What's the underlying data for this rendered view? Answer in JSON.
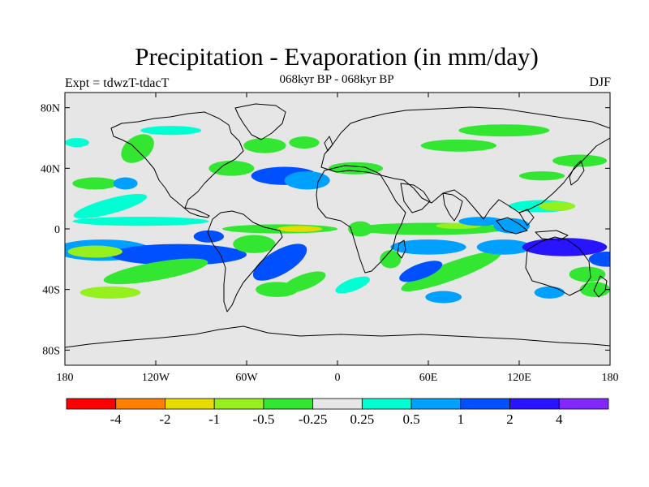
{
  "title": "Precipitation - Evaporation (in mm/day)",
  "subtitle": "068kyr BP - 068kyr BP",
  "left_label": "Expt = tdwzT-tdacT",
  "right_label": "DJF",
  "colors": {
    "background": "#e6e6e6",
    "coast": "#000000",
    "levels": [
      "#ff0000",
      "#ff8000",
      "#e6dc00",
      "#96f01e",
      "#32e632",
      "#e6e6e6",
      "#00ffd2",
      "#00a0ff",
      "#0050ff",
      "#2814ff",
      "#8228ff"
    ]
  },
  "map": {
    "lon_ticks": [
      "180",
      "120W",
      "60W",
      "0",
      "60E",
      "120E",
      "180"
    ],
    "lat_ticks": [
      "80N",
      "40N",
      "0",
      "40S",
      "80S"
    ]
  },
  "colorbar": {
    "labels": [
      "-4",
      "-2",
      "-1",
      "-0.5",
      "-0.25",
      "0.25",
      "0.5",
      "1",
      "2",
      "4"
    ]
  },
  "chart_data": {
    "type": "contour-map",
    "projection": "cylindrical-equidistant",
    "season": "DJF",
    "lon_range": [
      -180,
      180
    ],
    "lat_range": [
      -90,
      90
    ],
    "levels": [
      -4,
      -2,
      -1,
      -0.5,
      -0.25,
      0.25,
      0.5,
      1,
      2,
      4
    ],
    "regions": [
      {
        "lon": -155,
        "lat": -14,
        "rx": 32,
        "ry": 7,
        "level": 7,
        "angle": 0
      },
      {
        "lon": -105,
        "lat": -17,
        "rx": 45,
        "ry": 7,
        "level": 8,
        "angle": 0
      },
      {
        "lon": -160,
        "lat": -15,
        "rx": 18,
        "ry": 4,
        "level": 3,
        "angle": 0
      },
      {
        "lon": -130,
        "lat": 5,
        "rx": 45,
        "ry": 3,
        "level": 6,
        "angle": 0
      },
      {
        "lon": -85,
        "lat": -5,
        "rx": 10,
        "ry": 4,
        "level": 8,
        "angle": 0
      },
      {
        "lon": -150,
        "lat": 15,
        "rx": 25,
        "ry": 5,
        "level": 6,
        "angle": -15
      },
      {
        "lon": -150,
        "lat": -42,
        "rx": 20,
        "ry": 4,
        "level": 3,
        "angle": 0
      },
      {
        "lon": -120,
        "lat": -28,
        "rx": 35,
        "ry": 6,
        "level": 4,
        "angle": -10
      },
      {
        "lon": -160,
        "lat": 30,
        "rx": 15,
        "ry": 4,
        "level": 4,
        "angle": 0
      },
      {
        "lon": -132,
        "lat": 53,
        "rx": 12,
        "ry": 8,
        "level": 4,
        "angle": -35
      },
      {
        "lon": -172,
        "lat": 57,
        "rx": 8,
        "ry": 3,
        "level": 6,
        "angle": 0
      },
      {
        "lon": -70,
        "lat": 40,
        "rx": 15,
        "ry": 5,
        "level": 4,
        "angle": 0
      },
      {
        "lon": -35,
        "lat": 35,
        "rx": 22,
        "ry": 6,
        "level": 8,
        "angle": 0
      },
      {
        "lon": -20,
        "lat": 32,
        "rx": 15,
        "ry": 6,
        "level": 7,
        "angle": 0
      },
      {
        "lon": -48,
        "lat": 55,
        "rx": 14,
        "ry": 5,
        "level": 4,
        "angle": 0
      },
      {
        "lon": -22,
        "lat": 57,
        "rx": 10,
        "ry": 4,
        "level": 4,
        "angle": 0
      },
      {
        "lon": 12,
        "lat": 40,
        "rx": 18,
        "ry": 4,
        "level": 4,
        "angle": 0
      },
      {
        "lon": -38,
        "lat": 0,
        "rx": 38,
        "ry": 3,
        "level": 4,
        "angle": 0
      },
      {
        "lon": -25,
        "lat": 0,
        "rx": 15,
        "ry": 2,
        "level": 2,
        "angle": 0
      },
      {
        "lon": -55,
        "lat": -10,
        "rx": 14,
        "ry": 6,
        "level": 4,
        "angle": 0
      },
      {
        "lon": -38,
        "lat": -22,
        "rx": 20,
        "ry": 8,
        "level": 8,
        "angle": -30
      },
      {
        "lon": -22,
        "lat": -35,
        "rx": 15,
        "ry": 5,
        "level": 4,
        "angle": -20
      },
      {
        "lon": -40,
        "lat": -40,
        "rx": 14,
        "ry": 5,
        "level": 4,
        "angle": 0
      },
      {
        "lon": 10,
        "lat": -37,
        "rx": 12,
        "ry": 4,
        "level": 6,
        "angle": -20
      },
      {
        "lon": 15,
        "lat": 0,
        "rx": 8,
        "ry": 5,
        "level": 4,
        "angle": 0
      },
      {
        "lon": 35,
        "lat": -20,
        "rx": 7,
        "ry": 6,
        "level": 4,
        "angle": 0
      },
      {
        "lon": 60,
        "lat": 0,
        "rx": 50,
        "ry": 4,
        "level": 4,
        "angle": 0
      },
      {
        "lon": 80,
        "lat": 2,
        "rx": 15,
        "ry": 2,
        "level": 3,
        "angle": 0
      },
      {
        "lon": 60,
        "lat": -12,
        "rx": 25,
        "ry": 5,
        "level": 7,
        "angle": 0
      },
      {
        "lon": 75,
        "lat": -28,
        "rx": 35,
        "ry": 6,
        "level": 4,
        "angle": -20
      },
      {
        "lon": 55,
        "lat": -28,
        "rx": 15,
        "ry": 5,
        "level": 8,
        "angle": -20
      },
      {
        "lon": 70,
        "lat": -45,
        "rx": 12,
        "ry": 4,
        "level": 7,
        "angle": 0
      },
      {
        "lon": 95,
        "lat": 5,
        "rx": 15,
        "ry": 3,
        "level": 7,
        "angle": 0
      },
      {
        "lon": 115,
        "lat": 2,
        "rx": 12,
        "ry": 5,
        "level": 7,
        "angle": 0
      },
      {
        "lon": 135,
        "lat": 15,
        "rx": 22,
        "ry": 4,
        "level": 6,
        "angle": 0
      },
      {
        "lon": 145,
        "lat": 15,
        "rx": 12,
        "ry": 3,
        "level": 3,
        "angle": 0
      },
      {
        "lon": 110,
        "lat": -12,
        "rx": 18,
        "ry": 5,
        "level": 7,
        "angle": 0
      },
      {
        "lon": 150,
        "lat": -12,
        "rx": 28,
        "ry": 6,
        "level": 9,
        "angle": 0
      },
      {
        "lon": 178,
        "lat": -20,
        "rx": 12,
        "ry": 5,
        "level": 8,
        "angle": 0
      },
      {
        "lon": 165,
        "lat": -30,
        "rx": 12,
        "ry": 5,
        "level": 4,
        "angle": 0
      },
      {
        "lon": 135,
        "lat": 35,
        "rx": 15,
        "ry": 3,
        "level": 4,
        "angle": 0
      },
      {
        "lon": 160,
        "lat": 45,
        "rx": 18,
        "ry": 4,
        "level": 4,
        "angle": 0
      },
      {
        "lon": 140,
        "lat": -42,
        "rx": 10,
        "ry": 4,
        "level": 7,
        "angle": 0
      },
      {
        "lon": 170,
        "lat": -40,
        "rx": 10,
        "ry": 5,
        "level": 4,
        "angle": 0
      },
      {
        "lon": 80,
        "lat": 55,
        "rx": 25,
        "ry": 4,
        "level": 4,
        "angle": 0
      },
      {
        "lon": 110,
        "lat": 65,
        "rx": 30,
        "ry": 4,
        "level": 4,
        "angle": 0
      },
      {
        "lon": -110,
        "lat": 65,
        "rx": 20,
        "ry": 3,
        "level": 6,
        "angle": 0
      },
      {
        "lon": -140,
        "lat": 30,
        "rx": 8,
        "ry": 4,
        "level": 7,
        "angle": 0
      }
    ]
  }
}
